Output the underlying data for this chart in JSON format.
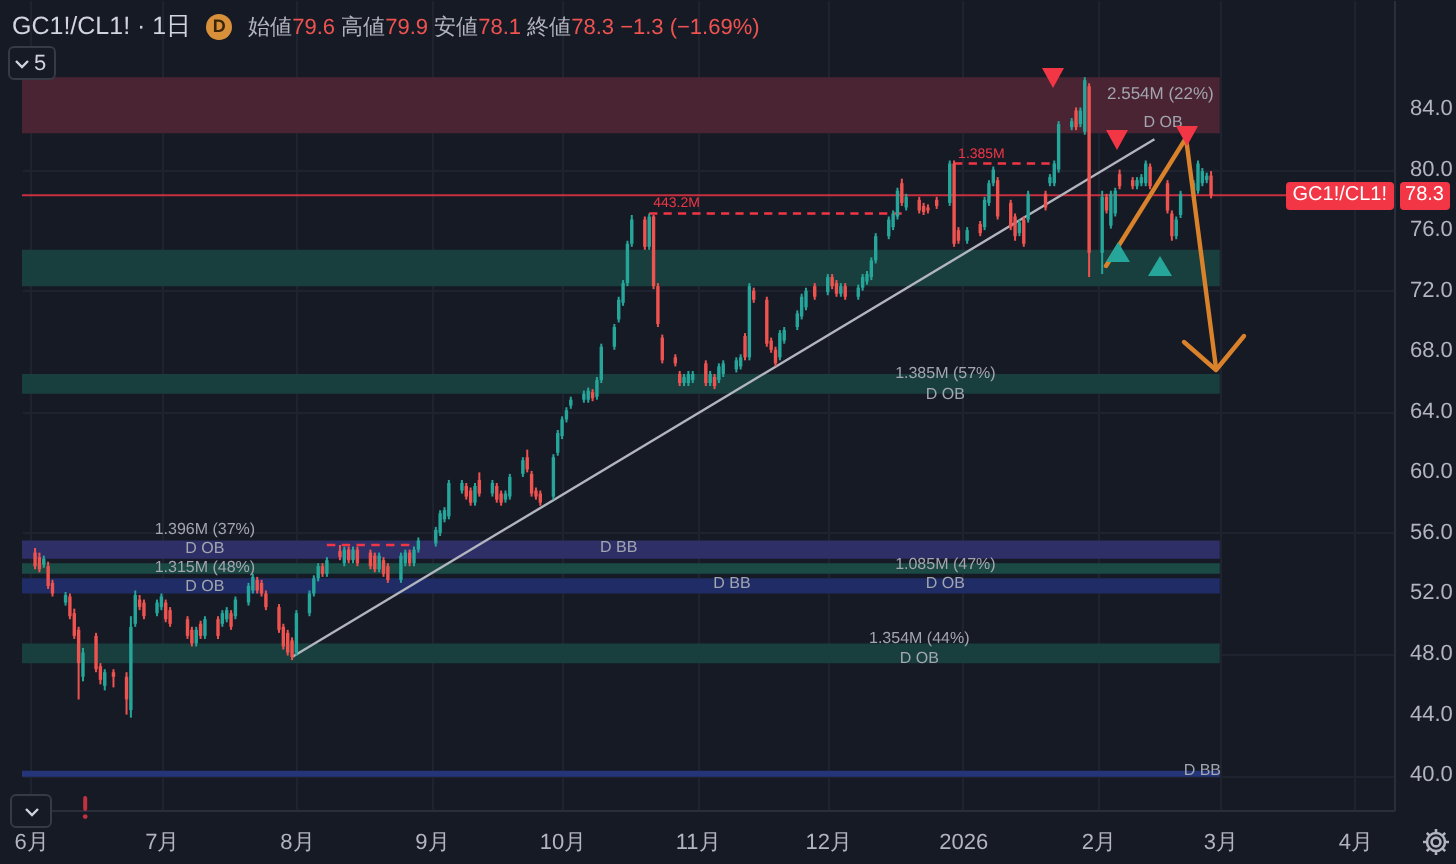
{
  "chart_data": {
    "type": "candlestick",
    "title": "GC1!/CL1! · 1日",
    "subtitle": "始値79.6 高値79.9 安値78.1 終値78.3 −1.3 (−1.69%)",
    "x": [
      "2025-06-02",
      "2025-06-03",
      "2025-06-04",
      "2025-06-05",
      "2025-06-06",
      "2025-06-09",
      "2025-06-10",
      "2025-06-11",
      "2025-06-12",
      "2025-06-13",
      "2025-06-16",
      "2025-06-17",
      "2025-06-18",
      "2025-06-20",
      "2025-06-23",
      "2025-06-24",
      "2025-06-25",
      "2025-06-26",
      "2025-06-27",
      "2025-06-30",
      "2025-07-01",
      "2025-07-02",
      "2025-07-03",
      "2025-07-07",
      "2025-07-08",
      "2025-07-09",
      "2025-07-10",
      "2025-07-11",
      "2025-07-14",
      "2025-07-15",
      "2025-07-16",
      "2025-07-17",
      "2025-07-18",
      "2025-07-21",
      "2025-07-22",
      "2025-07-23",
      "2025-07-24",
      "2025-07-25",
      "2025-07-28",
      "2025-07-29",
      "2025-07-30",
      "2025-07-31",
      "2025-08-01",
      "2025-08-04",
      "2025-08-05",
      "2025-08-06",
      "2025-08-07",
      "2025-08-08",
      "2025-08-11",
      "2025-08-12",
      "2025-08-13",
      "2025-08-14",
      "2025-08-15",
      "2025-08-18",
      "2025-08-19",
      "2025-08-20",
      "2025-08-21",
      "2025-08-22",
      "2025-08-25",
      "2025-08-26",
      "2025-08-27",
      "2025-08-28",
      "2025-08-29",
      "2025-09-02",
      "2025-09-03",
      "2025-09-04",
      "2025-09-05",
      "2025-09-08",
      "2025-09-09",
      "2025-09-10",
      "2025-09-11",
      "2025-09-12",
      "2025-09-15",
      "2025-09-16",
      "2025-09-17",
      "2025-09-18",
      "2025-09-19",
      "2025-09-22",
      "2025-09-23",
      "2025-09-24",
      "2025-09-25",
      "2025-09-26",
      "2025-09-29",
      "2025-09-30",
      "2025-10-01",
      "2025-10-02",
      "2025-10-03",
      "2025-10-06",
      "2025-10-07",
      "2025-10-08",
      "2025-10-09",
      "2025-10-10",
      "2025-10-13",
      "2025-10-14",
      "2025-10-15",
      "2025-10-16",
      "2025-10-17",
      "2025-10-20",
      "2025-10-21",
      "2025-10-22",
      "2025-10-23",
      "2025-10-24",
      "2025-10-27",
      "2025-10-28",
      "2025-10-29",
      "2025-10-30",
      "2025-10-31",
      "2025-11-03",
      "2025-11-04",
      "2025-11-05",
      "2025-11-06",
      "2025-11-07",
      "2025-11-10",
      "2025-11-11",
      "2025-11-12",
      "2025-11-13",
      "2025-11-14",
      "2025-11-17",
      "2025-11-18",
      "2025-11-19",
      "2025-11-20",
      "2025-11-21",
      "2025-11-24",
      "2025-11-25",
      "2025-11-26",
      "2025-11-28",
      "2025-12-01",
      "2025-12-02",
      "2025-12-03",
      "2025-12-04",
      "2025-12-05",
      "2025-12-08",
      "2025-12-09",
      "2025-12-10",
      "2025-12-11",
      "2025-12-12",
      "2025-12-15",
      "2025-12-16",
      "2025-12-17",
      "2025-12-18",
      "2025-12-19",
      "2025-12-22",
      "2025-12-23",
      "2025-12-24",
      "2025-12-26",
      "2025-12-29",
      "2025-12-30",
      "2025-12-31",
      "2026-01-02",
      "2026-01-05",
      "2026-01-06",
      "2026-01-07",
      "2026-01-08",
      "2026-01-09",
      "2026-01-12",
      "2026-01-13",
      "2026-01-14",
      "2026-01-15",
      "2026-01-16",
      "2026-01-20",
      "2026-01-21",
      "2026-01-22",
      "2026-01-23",
      "2026-01-26",
      "2026-01-27",
      "2026-01-28",
      "2026-01-29",
      "2026-01-30",
      "2026-02-02",
      "2026-02-03",
      "2026-02-04",
      "2026-02-05",
      "2026-02-06",
      "2026-02-09",
      "2026-02-10",
      "2026-02-11",
      "2026-02-12",
      "2026-02-13",
      "2026-02-17",
      "2026-02-18",
      "2026-02-19",
      "2026-02-20",
      "2026-02-23",
      "2026-02-24",
      "2026-02-25",
      "2026-02-26",
      "2026-02-27"
    ],
    "ohlc": [
      [
        54.7,
        55.0,
        53.6,
        53.8
      ],
      [
        54.4,
        54.7,
        53.4,
        53.6
      ],
      [
        53.9,
        54.5,
        53.7,
        54.3
      ],
      [
        53.8,
        54.1,
        52.3,
        52.5
      ],
      [
        52.7,
        52.9,
        51.8,
        52.0
      ],
      [
        51.4,
        52.1,
        51.2,
        51.9
      ],
      [
        51.8,
        52.0,
        50.3,
        50.5
      ],
      [
        50.7,
        51.0,
        49.0,
        49.2
      ],
      [
        49.6,
        49.8,
        45.0,
        47.4
      ],
      [
        46.5,
        48.4,
        46.2,
        48.1
      ],
      [
        49.2,
        49.4,
        46.8,
        47.0
      ],
      [
        47.2,
        47.4,
        46.0,
        46.3
      ],
      [
        45.9,
        47.0,
        45.6,
        46.8
      ],
      [
        46.8,
        47.0,
        45.8,
        46.5
      ],
      [
        46.5,
        46.8,
        44.0,
        45.0
      ],
      [
        44.3,
        50.5,
        43.8,
        49.8
      ],
      [
        50.0,
        52.2,
        49.8,
        51.9
      ],
      [
        51.6,
        51.9,
        50.9,
        51.1
      ],
      [
        51.4,
        51.6,
        50.3,
        50.5
      ],
      [
        50.7,
        51.6,
        50.5,
        51.4
      ],
      [
        51.1,
        52.0,
        50.9,
        51.8
      ],
      [
        51.4,
        51.6,
        50.1,
        50.3
      ],
      [
        50.9,
        51.1,
        49.8,
        50.0
      ],
      [
        50.3,
        50.5,
        49.0,
        49.2
      ],
      [
        49.6,
        49.8,
        48.5,
        48.7
      ],
      [
        48.7,
        49.8,
        48.5,
        49.6
      ],
      [
        50.0,
        50.2,
        49.0,
        49.2
      ],
      [
        49.2,
        50.5,
        49.0,
        50.3
      ],
      [
        50.3,
        50.5,
        49.0,
        49.2
      ],
      [
        50.0,
        50.9,
        49.8,
        50.7
      ],
      [
        50.3,
        51.1,
        50.1,
        50.9
      ],
      [
        50.7,
        50.9,
        49.6,
        49.8
      ],
      [
        50.5,
        51.8,
        50.3,
        51.6
      ],
      [
        51.4,
        52.7,
        51.2,
        52.5
      ],
      [
        52.2,
        53.3,
        52.0,
        53.1
      ],
      [
        52.9,
        53.1,
        52.0,
        52.2
      ],
      [
        52.7,
        52.9,
        51.8,
        52.0
      ],
      [
        52.0,
        52.2,
        50.9,
        51.1
      ],
      [
        51.1,
        51.3,
        49.4,
        49.6
      ],
      [
        49.8,
        50.0,
        48.3,
        48.5
      ],
      [
        49.4,
        49.6,
        47.9,
        48.1
      ],
      [
        48.9,
        49.1,
        47.6,
        47.8
      ],
      [
        48.1,
        50.9,
        47.9,
        50.7
      ],
      [
        50.7,
        52.2,
        50.5,
        52.0
      ],
      [
        52.0,
        53.2,
        51.8,
        53.0
      ],
      [
        53.0,
        54.0,
        52.8,
        53.8
      ],
      [
        53.8,
        54.0,
        53.1,
        53.3
      ],
      [
        53.3,
        54.4,
        53.1,
        54.2
      ],
      [
        54.8,
        55.2,
        54.2,
        54.4
      ],
      [
        54.0,
        55.1,
        53.8,
        54.9
      ],
      [
        54.9,
        55.1,
        54.0,
        54.2
      ],
      [
        54.2,
        55.1,
        54.0,
        54.9
      ],
      [
        54.9,
        55.1,
        53.8,
        54.0
      ],
      [
        54.7,
        54.9,
        53.6,
        53.8
      ],
      [
        54.5,
        54.7,
        53.4,
        53.6
      ],
      [
        53.6,
        54.7,
        53.4,
        54.5
      ],
      [
        54.2,
        54.4,
        53.1,
        53.3
      ],
      [
        53.8,
        54.0,
        52.7,
        52.9
      ],
      [
        52.9,
        54.7,
        52.7,
        54.5
      ],
      [
        54.0,
        54.9,
        53.8,
        54.7
      ],
      [
        54.7,
        54.9,
        53.8,
        54.0
      ],
      [
        54.0,
        55.1,
        53.8,
        54.9
      ],
      [
        54.9,
        55.7,
        54.7,
        55.5
      ],
      [
        55.3,
        56.4,
        55.1,
        56.2
      ],
      [
        56.0,
        57.5,
        55.8,
        57.3
      ],
      [
        56.9,
        57.7,
        56.7,
        57.5
      ],
      [
        57.1,
        59.5,
        56.9,
        59.3
      ],
      [
        58.8,
        59.5,
        58.6,
        59.3
      ],
      [
        59.1,
        59.3,
        58.2,
        58.4
      ],
      [
        58.8,
        59.0,
        57.8,
        58.0
      ],
      [
        58.0,
        59.3,
        57.8,
        59.1
      ],
      [
        59.5,
        60.0,
        58.4,
        58.6
      ],
      [
        58.6,
        59.5,
        58.4,
        59.3
      ],
      [
        59.1,
        59.3,
        58.0,
        58.2
      ],
      [
        58.6,
        58.8,
        57.8,
        58.0
      ],
      [
        58.2,
        58.8,
        58.0,
        58.6
      ],
      [
        58.4,
        59.9,
        58.2,
        59.7
      ],
      [
        59.9,
        61.0,
        59.7,
        60.8
      ],
      [
        61.0,
        61.5,
        60.0,
        60.2
      ],
      [
        59.9,
        60.1,
        58.4,
        58.6
      ],
      [
        58.8,
        59.0,
        58.2,
        58.4
      ],
      [
        58.6,
        58.8,
        57.8,
        58.0
      ],
      [
        58.4,
        61.2,
        58.2,
        61.0
      ],
      [
        61.3,
        62.8,
        61.1,
        62.6
      ],
      [
        62.4,
        63.7,
        62.2,
        63.5
      ],
      [
        63.5,
        64.3,
        63.3,
        64.1
      ],
      [
        64.4,
        65.0,
        64.2,
        64.8
      ],
      [
        64.8,
        65.4,
        64.6,
        65.2
      ],
      [
        64.8,
        65.6,
        64.6,
        65.4
      ],
      [
        65.3,
        65.5,
        64.7,
        64.9
      ],
      [
        65.0,
        66.3,
        64.8,
        66.1
      ],
      [
        66.1,
        68.5,
        65.9,
        68.3
      ],
      [
        68.3,
        69.8,
        68.1,
        69.6
      ],
      [
        70.1,
        71.6,
        69.9,
        71.4
      ],
      [
        71.2,
        72.7,
        71.0,
        72.5
      ],
      [
        72.5,
        75.3,
        72.3,
        75.1
      ],
      [
        75.1,
        77.0,
        74.9,
        76.7
      ],
      [
        76.7,
        76.9,
        74.7,
        74.9
      ],
      [
        74.9,
        77.1,
        74.7,
        76.9
      ],
      [
        76.9,
        77.0,
        72.1,
        72.3
      ],
      [
        72.3,
        72.5,
        69.6,
        69.8
      ],
      [
        68.9,
        69.1,
        67.2,
        67.4
      ],
      [
        67.6,
        67.8,
        67.0,
        67.2
      ],
      [
        66.5,
        66.7,
        65.7,
        65.9
      ],
      [
        65.9,
        66.5,
        65.7,
        66.3
      ],
      [
        65.9,
        66.7,
        65.7,
        66.5
      ],
      [
        66.1,
        66.7,
        65.9,
        66.5
      ],
      [
        67.2,
        67.4,
        65.7,
        65.9
      ],
      [
        65.9,
        66.7,
        65.7,
        66.5
      ],
      [
        66.3,
        66.5,
        65.5,
        65.7
      ],
      [
        66.1,
        67.2,
        65.9,
        67.0
      ],
      [
        66.5,
        67.4,
        66.3,
        67.2
      ],
      [
        66.8,
        67.6,
        66.6,
        67.4
      ],
      [
        67.0,
        67.8,
        66.8,
        67.6
      ],
      [
        69.0,
        69.2,
        67.4,
        67.6
      ],
      [
        67.6,
        72.5,
        67.4,
        72.3
      ],
      [
        72.0,
        72.2,
        71.2,
        71.4
      ],
      [
        71.4,
        71.6,
        68.3,
        68.5
      ],
      [
        68.7,
        68.9,
        67.9,
        68.1
      ],
      [
        68.1,
        68.3,
        67.0,
        67.2
      ],
      [
        67.6,
        69.4,
        67.4,
        69.2
      ],
      [
        68.7,
        69.6,
        68.5,
        69.4
      ],
      [
        69.6,
        70.7,
        69.4,
        70.5
      ],
      [
        70.3,
        71.8,
        70.1,
        71.6
      ],
      [
        70.9,
        72.2,
        70.7,
        72.0
      ],
      [
        72.3,
        72.5,
        71.4,
        71.6
      ],
      [
        71.9,
        73.1,
        71.7,
        72.9
      ],
      [
        72.9,
        73.1,
        72.1,
        72.3
      ],
      [
        72.5,
        72.7,
        71.6,
        71.8
      ],
      [
        71.8,
        72.5,
        71.6,
        72.3
      ],
      [
        72.3,
        72.5,
        71.4,
        71.6
      ],
      [
        71.6,
        72.4,
        71.4,
        72.2
      ],
      [
        72.2,
        73.1,
        72.0,
        72.9
      ],
      [
        72.6,
        73.3,
        72.4,
        73.1
      ],
      [
        72.9,
        74.2,
        72.7,
        74.0
      ],
      [
        74.0,
        75.8,
        73.8,
        75.6
      ],
      [
        75.6,
        76.9,
        75.4,
        76.7
      ],
      [
        76.2,
        77.3,
        76.0,
        77.1
      ],
      [
        76.9,
        78.8,
        76.7,
        78.6
      ],
      [
        79.1,
        79.4,
        77.6,
        77.8
      ],
      [
        77.5,
        78.4,
        77.3,
        78.2
      ],
      [
        78.0,
        78.2,
        77.1,
        77.3
      ],
      [
        77.6,
        77.8,
        77.0,
        77.2
      ],
      [
        77.5,
        77.7,
        77.1,
        77.3
      ],
      [
        78.0,
        78.2,
        77.4,
        77.6
      ],
      [
        77.8,
        80.6,
        77.6,
        80.4
      ],
      [
        80.4,
        80.6,
        74.9,
        75.1
      ],
      [
        76.0,
        76.2,
        75.1,
        75.3
      ],
      [
        75.3,
        76.2,
        75.1,
        76.0
      ],
      [
        76.4,
        76.6,
        75.6,
        75.8
      ],
      [
        76.2,
        78.2,
        76.0,
        78.0
      ],
      [
        77.8,
        79.3,
        77.6,
        79.1
      ],
      [
        79.1,
        80.2,
        78.9,
        80.0
      ],
      [
        79.3,
        79.5,
        76.7,
        76.9
      ],
      [
        77.8,
        78.0,
        76.0,
        76.2
      ],
      [
        76.9,
        77.1,
        75.3,
        75.6
      ],
      [
        75.8,
        76.7,
        75.6,
        76.5
      ],
      [
        76.7,
        76.9,
        74.9,
        75.1
      ],
      [
        76.7,
        78.6,
        76.5,
        78.4
      ],
      [
        78.4,
        78.6,
        77.3,
        77.5
      ],
      [
        79.1,
        79.7,
        78.9,
        79.5
      ],
      [
        79.1,
        80.6,
        78.9,
        80.4
      ],
      [
        80.0,
        83.2,
        79.8,
        83.0
      ],
      [
        82.8,
        83.4,
        82.6,
        83.2
      ],
      [
        83.9,
        84.1,
        82.6,
        82.8
      ],
      [
        83.0,
        84.1,
        82.8,
        83.9
      ],
      [
        82.5,
        86.1,
        82.3,
        85.9
      ],
      [
        85.5,
        85.7,
        72.9,
        74.5
      ],
      [
        74.5,
        78.6,
        73.1,
        78.2
      ],
      [
        78.2,
        78.4,
        77.1,
        77.3
      ],
      [
        76.3,
        78.6,
        76.1,
        78.4
      ],
      [
        77.1,
        78.8,
        76.9,
        78.6
      ],
      [
        79.7,
        80.0,
        78.7,
        78.9
      ],
      [
        79.3,
        79.5,
        78.7,
        78.9
      ],
      [
        78.9,
        79.5,
        78.7,
        79.3
      ],
      [
        79.1,
        79.7,
        78.9,
        79.5
      ],
      [
        79.1,
        80.6,
        78.9,
        80.4
      ],
      [
        80.2,
        80.4,
        78.7,
        78.9
      ],
      [
        79.1,
        79.3,
        77.1,
        77.3
      ],
      [
        77.1,
        77.3,
        75.3,
        75.6
      ],
      [
        75.6,
        76.9,
        75.4,
        76.7
      ],
      [
        77.0,
        78.6,
        76.8,
        78.4
      ],
      [
        78.2,
        79.3,
        78.0,
        79.1
      ],
      [
        78.6,
        80.6,
        78.4,
        80.4
      ],
      [
        79.1,
        80.1,
        78.9,
        79.9
      ],
      [
        79.3,
        79.8,
        79.1,
        79.6
      ],
      [
        79.6,
        79.9,
        78.1,
        78.3
      ]
    ],
    "colors": [
      "#ef5350",
      "#ef5350",
      "#26a69a",
      "#ef5350",
      "#ef5350",
      "#26a69a",
      "#ef5350",
      "#ef5350",
      "#ef5350",
      "#26a69a",
      "#ef5350",
      "#ef5350",
      "#26a69a",
      "#ef5350",
      "#ef5350",
      "#26a69a",
      "#26a69a",
      "#ef5350",
      "#ef5350",
      "#26a69a",
      "#26a69a",
      "#ef5350",
      "#ef5350",
      "#ef5350",
      "#ef5350",
      "#26a69a",
      "#ef5350",
      "#26a69a",
      "#ef5350",
      "#26a69a",
      "#26a69a",
      "#ef5350",
      "#26a69a",
      "#26a69a",
      "#26a69a",
      "#ef5350",
      "#ef5350",
      "#ef5350",
      "#ef5350",
      "#ef5350",
      "#ef5350",
      "#ef5350",
      "#26a69a",
      "#26a69a",
      "#26a69a",
      "#26a69a",
      "#ef5350",
      "#26a69a",
      "#ef5350",
      "#26a69a",
      "#ef5350",
      "#26a69a",
      "#ef5350",
      "#ef5350",
      "#ef5350",
      "#26a69a",
      "#ef5350",
      "#ef5350",
      "#26a69a",
      "#26a69a",
      "#ef5350",
      "#26a69a",
      "#26a69a",
      "#26a69a",
      "#26a69a",
      "#26a69a",
      "#26a69a",
      "#26a69a",
      "#ef5350",
      "#ef5350",
      "#26a69a",
      "#ef5350",
      "#26a69a",
      "#ef5350",
      "#ef5350",
      "#26a69a",
      "#26a69a",
      "#26a69a",
      "#ef5350",
      "#ef5350",
      "#ef5350",
      "#ef5350",
      "#26a69a",
      "#26a69a",
      "#26a69a",
      "#26a69a",
      "#26a69a",
      "#26a69a",
      "#26a69a",
      "#ef5350",
      "#26a69a",
      "#26a69a",
      "#26a69a",
      "#26a69a",
      "#26a69a",
      "#26a69a",
      "#26a69a",
      "#ef5350",
      "#26a69a",
      "#ef5350",
      "#ef5350",
      "#ef5350",
      "#ef5350",
      "#ef5350",
      "#26a69a",
      "#26a69a",
      "#26a69a",
      "#ef5350",
      "#26a69a",
      "#ef5350",
      "#26a69a",
      "#26a69a",
      "#26a69a",
      "#26a69a",
      "#ef5350",
      "#26a69a",
      "#ef5350",
      "#ef5350",
      "#ef5350",
      "#ef5350",
      "#26a69a",
      "#26a69a",
      "#26a69a",
      "#26a69a",
      "#26a69a",
      "#ef5350",
      "#26a69a",
      "#ef5350",
      "#ef5350",
      "#26a69a",
      "#ef5350",
      "#26a69a",
      "#26a69a",
      "#26a69a",
      "#26a69a",
      "#26a69a",
      "#26a69a",
      "#26a69a",
      "#26a69a",
      "#ef5350",
      "#26a69a",
      "#ef5350",
      "#ef5350",
      "#ef5350",
      "#ef5350",
      "#26a69a",
      "#ef5350",
      "#ef5350",
      "#26a69a",
      "#ef5350",
      "#26a69a",
      "#26a69a",
      "#26a69a",
      "#ef5350",
      "#ef5350",
      "#ef5350",
      "#26a69a",
      "#ef5350",
      "#26a69a",
      "#ef5350",
      "#26a69a",
      "#26a69a",
      "#26a69a",
      "#26a69a",
      "#ef5350",
      "#26a69a",
      "#26a69a",
      "#ef5350",
      "#26a69a",
      "#ef5350",
      "#26a69a",
      "#26a69a",
      "#ef5350",
      "#ef5350",
      "#26a69a",
      "#26a69a",
      "#26a69a",
      "#ef5350",
      "#ef5350",
      "#ef5350",
      "#26a69a",
      "#26a69a",
      "#26a69a",
      "#26a69a",
      "#26a69a",
      "#26a69a",
      "#ef5350"
    ],
    "series": [
      {
        "type": "line",
        "x": [
          "2025-07-31",
          "2026-02-14"
        ],
        "values": [
          47.8,
          82.0
        ],
        "color": "#b2b5be",
        "line_style": "solid"
      },
      {
        "type": "line",
        "name": "443.2M",
        "x": [
          "2025-10-21",
          "2025-12-18"
        ],
        "values": [
          77.1,
          77.1
        ],
        "color": "#f23645",
        "line_style": "dashed"
      },
      {
        "type": "line",
        "name": "1.385M",
        "x": [
          "2025-12-30",
          "2026-01-21"
        ],
        "values": [
          80.4,
          80.4
        ],
        "color": "#f23645",
        "line_style": "dashed"
      },
      {
        "type": "line",
        "x": [
          "2025-08-08",
          "2025-08-27"
        ],
        "values": [
          55.2,
          55.2
        ],
        "color": "#f23645",
        "line_style": "dashed"
      }
    ],
    "xlim": [
      "2025-05-30",
      "2026-04-10"
    ],
    "ylim": [
      37.7,
      91.2
    ],
    "xticks": [
      {
        "value": "2025-06-01",
        "label": "6月"
      },
      {
        "value": "2025-07-01",
        "label": "7月"
      },
      {
        "value": "2025-08-01",
        "label": "8月"
      },
      {
        "value": "2025-09-01",
        "label": "9月"
      },
      {
        "value": "2025-10-01",
        "label": "10月"
      },
      {
        "value": "2025-11-01",
        "label": "11月"
      },
      {
        "value": "2025-12-01",
        "label": "12月"
      },
      {
        "value": "2026-01-01",
        "label": "2026"
      },
      {
        "value": "2026-02-01",
        "label": "2月"
      },
      {
        "value": "2026-03-01",
        "label": "3月"
      },
      {
        "value": "2026-04-01",
        "label": "4月"
      }
    ],
    "yticks": [
      {
        "value": 40,
        "label": "40.0"
      },
      {
        "value": 44,
        "label": "44.0"
      },
      {
        "value": 48,
        "label": "48.0"
      },
      {
        "value": 52,
        "label": "52.0"
      },
      {
        "value": 56,
        "label": "56.0"
      },
      {
        "value": 60,
        "label": "60.0"
      },
      {
        "value": 64,
        "label": "64.0"
      },
      {
        "value": 68,
        "label": "68.0"
      },
      {
        "value": 72,
        "label": "72.0"
      },
      {
        "value": 76,
        "label": "76.0"
      },
      {
        "value": 80,
        "label": "80.0"
      },
      {
        "value": 84,
        "label": "84.0"
      }
    ],
    "ref_lines": [
      {
        "axis": "y",
        "value": 78.3,
        "label": "GC1!/CL1! 78.3",
        "color": "#f23645"
      }
    ],
    "bands": [
      {
        "axis": "y",
        "from": 82.4,
        "to": 86.1,
        "label": "2.554M (22%)",
        "color": "#4a2433"
      },
      {
        "axis": "y",
        "from": 72.3,
        "to": 74.7,
        "color": "#183f3d"
      },
      {
        "axis": "y",
        "from": 65.2,
        "to": 66.5,
        "color": "#183f3d"
      },
      {
        "axis": "y",
        "from": 54.3,
        "to": 55.5,
        "color": "#2f2f68"
      },
      {
        "axis": "y",
        "from": 53.3,
        "to": 54.0,
        "color": "#1b4a45"
      },
      {
        "axis": "y",
        "from": 52.0,
        "to": 53.0,
        "color": "#1f2c66"
      },
      {
        "axis": "y",
        "from": 47.4,
        "to": 48.7,
        "color": "#183f3d"
      },
      {
        "axis": "y",
        "from": 39.9,
        "to": 40.3,
        "color": "#24357a"
      }
    ],
    "annotations": [
      "D",
      "5",
      {
        "text": "D OB",
        "x": "2026-02-16",
        "y": 83.1
      },
      {
        "text": "1.385M (57%)",
        "x": "2025-12-28",
        "y": 66.5
      },
      {
        "text": "D OB",
        "x": "2025-12-28",
        "y": 65.1
      },
      {
        "text": "1.396M (37%)",
        "x": "2025-07-11",
        "y": 56.2
      },
      {
        "text": "D OB",
        "x": "2025-07-11",
        "y": 54.95
      },
      {
        "text": "1.315M (48%)",
        "x": "2025-07-11",
        "y": 53.7
      },
      {
        "text": "D OB",
        "x": "2025-07-11",
        "y": 52.45
      },
      {
        "text": "D BB",
        "x": "2025-10-14",
        "y": 55.0
      },
      {
        "text": "D BB",
        "x": "2025-11-09",
        "y": 52.6
      },
      {
        "text": "1.085M (47%)",
        "x": "2025-12-28",
        "y": 53.9
      },
      {
        "text": "D OB",
        "x": "2025-12-28",
        "y": 52.6
      },
      {
        "text": "1.354M (44%)",
        "x": "2025-12-22",
        "y": 49.0
      },
      {
        "text": "D OB",
        "x": "2025-12-22",
        "y": 47.7
      },
      {
        "text": "D BB",
        "x": "2026-02-25",
        "y": 40.3
      }
    ],
    "grid": true
  }
}
